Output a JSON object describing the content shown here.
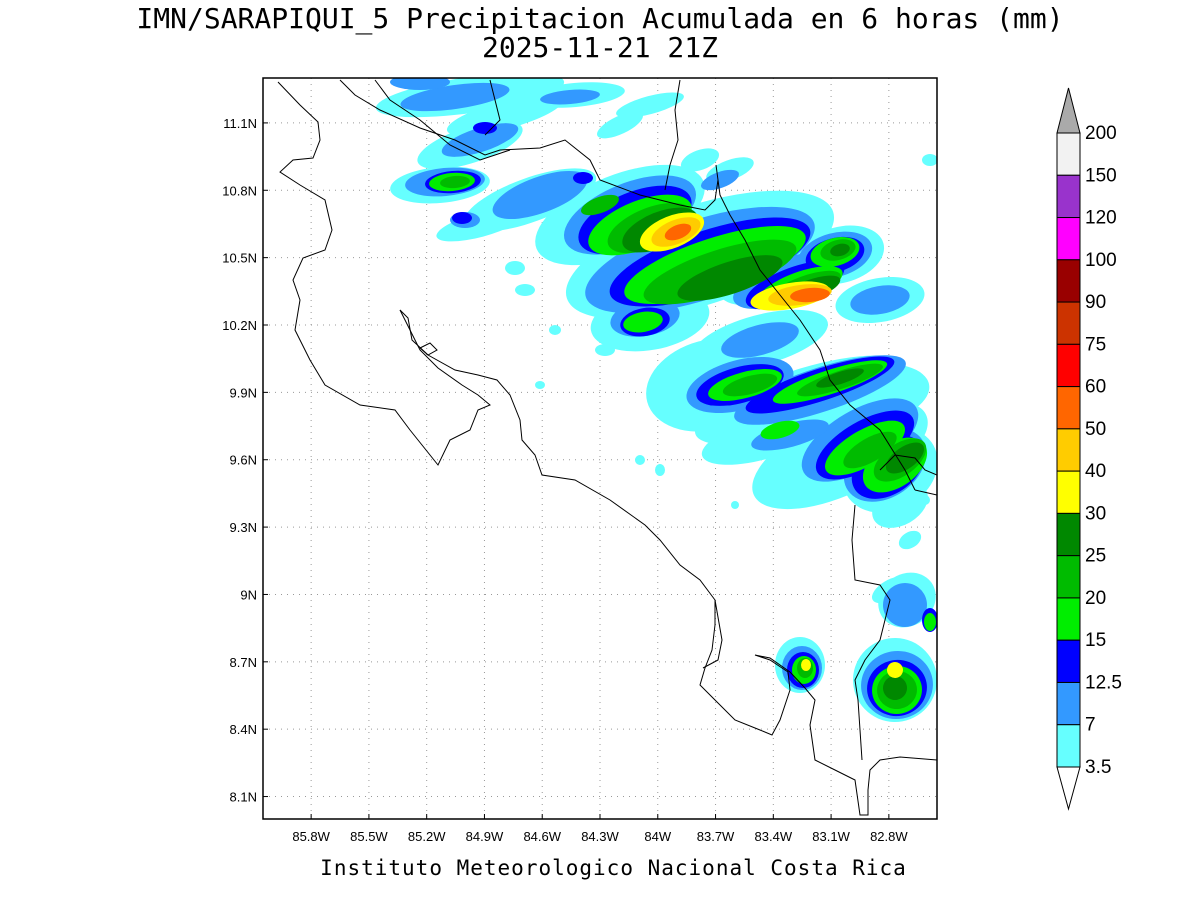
{
  "title": {
    "line1": "IMN/SARAPIQUI_5 Precipitacion Acumulada en 6 horas (mm)",
    "line2": "2025-11-21 21Z"
  },
  "footer": "Instituto Meteorologico Nacional Costa Rica",
  "map": {
    "lon_range": [
      -86.05,
      -82.55
    ],
    "lat_range": [
      8.0,
      11.3
    ],
    "lon_ticks": [
      {
        "value": -85.8,
        "label": "85.8W"
      },
      {
        "value": -85.5,
        "label": "85.5W"
      },
      {
        "value": -85.2,
        "label": "85.2W"
      },
      {
        "value": -84.9,
        "label": "84.9W"
      },
      {
        "value": -84.6,
        "label": "84.6W"
      },
      {
        "value": -84.3,
        "label": "84.3W"
      },
      {
        "value": -84.0,
        "label": "84W"
      },
      {
        "value": -83.7,
        "label": "83.7W"
      },
      {
        "value": -83.4,
        "label": "83.4W"
      },
      {
        "value": -83.1,
        "label": "83.1W"
      },
      {
        "value": -82.8,
        "label": "82.8W"
      }
    ],
    "lat_ticks": [
      {
        "value": 11.1,
        "label": "11.1N"
      },
      {
        "value": 10.8,
        "label": "10.8N"
      },
      {
        "value": 10.5,
        "label": "10.5N"
      },
      {
        "value": 10.2,
        "label": "10.2N"
      },
      {
        "value": 9.9,
        "label": "9.9N"
      },
      {
        "value": 9.6,
        "label": "9.6N"
      },
      {
        "value": 9.3,
        "label": "9.3N"
      },
      {
        "value": 9.0,
        "label": "9N"
      },
      {
        "value": 8.7,
        "label": "8.7N"
      },
      {
        "value": 8.4,
        "label": "8.4N"
      },
      {
        "value": 8.1,
        "label": "8.1N"
      }
    ],
    "grid": "dotted"
  },
  "colorbar": {
    "unit": "mm",
    "levels": [
      {
        "label": "200",
        "color": "#f2f2f2"
      },
      {
        "label": "150",
        "color": "#9933cc"
      },
      {
        "label": "120",
        "color": "#ff00ff"
      },
      {
        "label": "100",
        "color": "#990000"
      },
      {
        "label": "90",
        "color": "#cc3300"
      },
      {
        "label": "75",
        "color": "#ff0000"
      },
      {
        "label": "60",
        "color": "#ff6600"
      },
      {
        "label": "50",
        "color": "#ffcc00"
      },
      {
        "label": "40",
        "color": "#ffff00"
      },
      {
        "label": "30",
        "color": "#008800"
      },
      {
        "label": "25",
        "color": "#00bb00"
      },
      {
        "label": "20",
        "color": "#00ee00"
      },
      {
        "label": "15",
        "color": "#0000ff"
      },
      {
        "label": "12.5",
        "color": "#3399ff"
      },
      {
        "label": "7",
        "color": "#66ffff"
      },
      {
        "label": "3.5",
        "color": ""
      }
    ],
    "over_color": "#aaaaaa"
  },
  "colors": {
    "c35": "#66ffff",
    "c7": "#3399ff",
    "c125": "#0000ff",
    "c15": "#00ee00",
    "c20": "#00bb00",
    "c25": "#008800",
    "c30": "#ffff00",
    "c40": "#ffcc00",
    "c50": "#ff6600"
  }
}
